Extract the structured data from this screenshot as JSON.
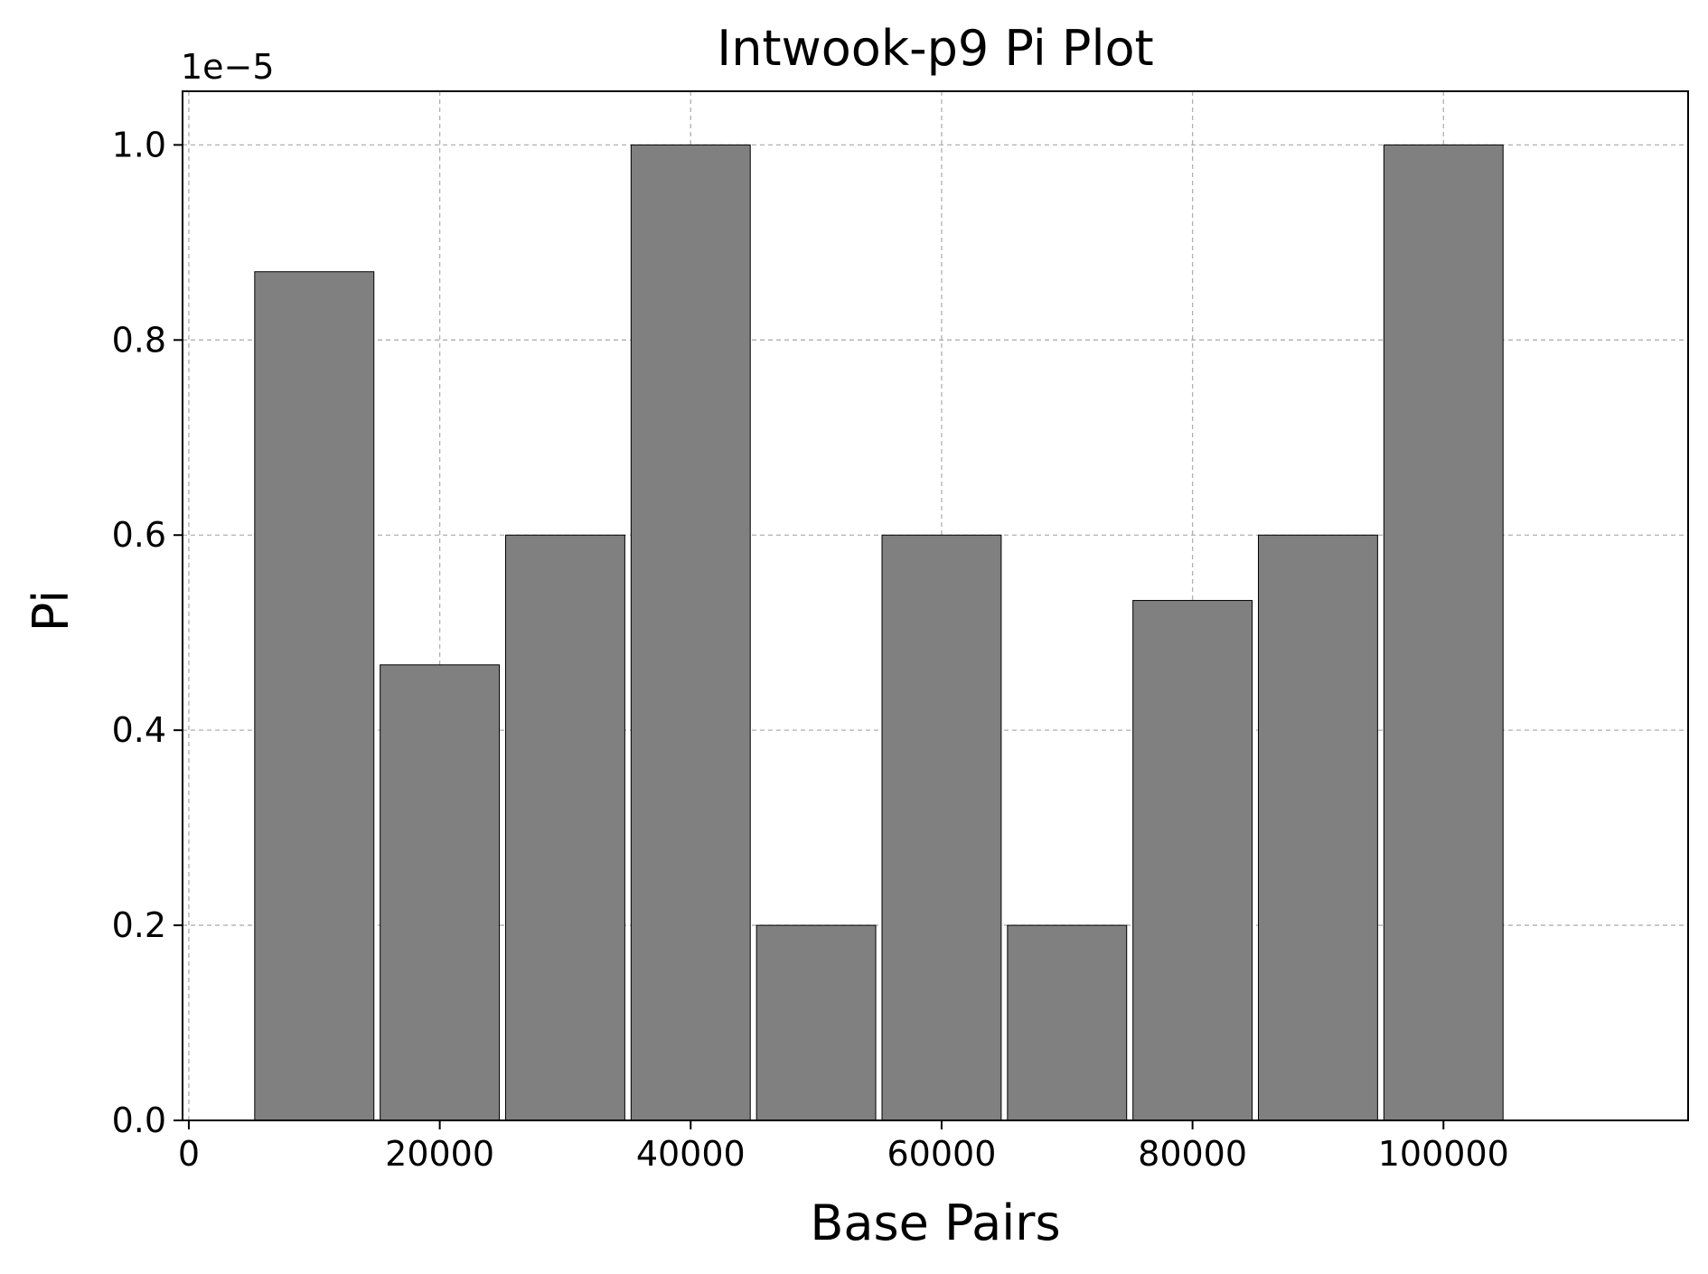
{
  "chart_data": {
    "type": "bar",
    "title": "Intwook-p9 Pi Plot",
    "xlabel": "Base Pairs",
    "ylabel": "Pi",
    "y_offset_label": "1e−5",
    "x": [
      10000,
      20000,
      30000,
      40000,
      50000,
      60000,
      70000,
      80000,
      90000,
      100000
    ],
    "values": [
      8.7e-06,
      4.67e-06,
      6e-06,
      1e-05,
      2e-06,
      6e-06,
      2e-06,
      5.33e-06,
      6e-06,
      1e-05
    ],
    "bar_width": 9500,
    "xlim": [
      -500,
      119500
    ],
    "ylim": [
      0,
      1.055e-05
    ],
    "xticks": [
      {
        "value": 0,
        "label": "0"
      },
      {
        "value": 20000,
        "label": "20000"
      },
      {
        "value": 40000,
        "label": "40000"
      },
      {
        "value": 60000,
        "label": "60000"
      },
      {
        "value": 80000,
        "label": "80000"
      },
      {
        "value": 100000,
        "label": "100000"
      }
    ],
    "yticks": [
      {
        "value": 0,
        "label": "0.0"
      },
      {
        "value": 2e-06,
        "label": "0.2"
      },
      {
        "value": 4e-06,
        "label": "0.4"
      },
      {
        "value": 6e-06,
        "label": "0.6"
      },
      {
        "value": 8e-06,
        "label": "0.8"
      },
      {
        "value": 1e-05,
        "label": "1.0"
      }
    ],
    "grid": true,
    "colors": {
      "bar_fill": "#808080",
      "bar_edge": "#000000",
      "grid": "#b0b0b0",
      "axes": "#000000"
    }
  }
}
